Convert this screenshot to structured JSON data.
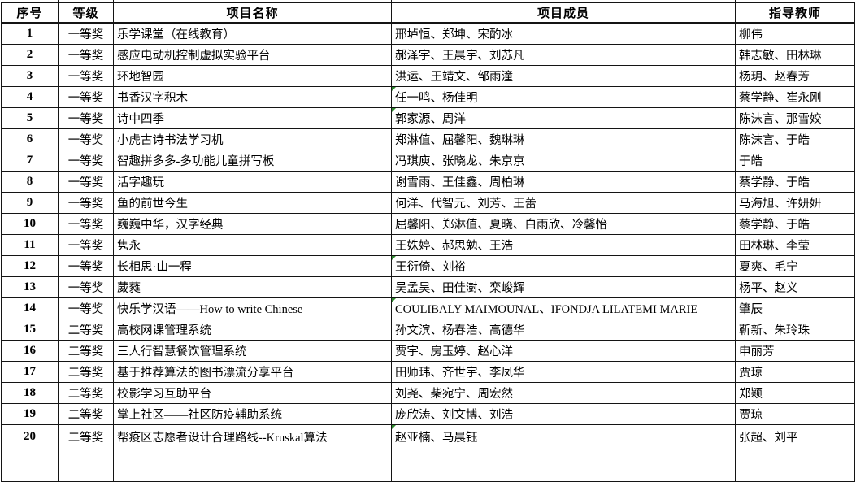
{
  "table": {
    "headers": [
      "序号",
      "等级",
      "项目名称",
      "项目成员",
      "指导教师"
    ],
    "rows": [
      {
        "no": "1",
        "grade": "一等奖",
        "project": "乐学课堂（在线教育）",
        "members": "邢垆恒、郑坤、宋酌冰",
        "teachers": "柳伟",
        "flag": false
      },
      {
        "no": "2",
        "grade": "一等奖",
        "project": "感应电动机控制虚拟实验平台",
        "members": "郝泽宇、王晨宇、刘苏凡",
        "teachers": "韩志敏、田林琳",
        "flag": false
      },
      {
        "no": "3",
        "grade": "一等奖",
        "project": "环地智园",
        "members": "洪运、王靖文、邹雨潼",
        "teachers": "杨玥、赵春芳",
        "flag": false
      },
      {
        "no": "4",
        "grade": "一等奖",
        "project": "书香汉字积木",
        "members": "任一鸣、杨佳明",
        "teachers": "蔡学静、崔永刚",
        "flag": true
      },
      {
        "no": "5",
        "grade": "一等奖",
        "project": "诗中四季",
        "members": "郭家源、周洋",
        "teachers": "陈沫言、那雪姣",
        "flag": true
      },
      {
        "no": "6",
        "grade": "一等奖",
        "project": "小虎古诗书法学习机",
        "members": "郑淋值、屈馨阳、魏琳琳",
        "teachers": "陈沫言、于皓",
        "flag": false
      },
      {
        "no": "7",
        "grade": "一等奖",
        "project": "智趣拼多多-多功能儿童拼写板",
        "members": "冯琪庾、张晓龙、朱京京",
        "teachers": "于皓",
        "flag": false
      },
      {
        "no": "8",
        "grade": "一等奖",
        "project": "活字趣玩",
        "members": "谢雪雨、王佳鑫、周柏琳",
        "teachers": "蔡学静、于皓",
        "flag": false
      },
      {
        "no": "9",
        "grade": "一等奖",
        "project": "鱼的前世今生",
        "members": "何洋、代智元、刘芳、王蕾",
        "teachers": "马海旭、许妍妍",
        "flag": false
      },
      {
        "no": "10",
        "grade": "一等奖",
        "project": "巍巍中华，汉字经典",
        "members": "屈馨阳、郑淋值、夏晓、白雨欣、冷馨怡",
        "teachers": "蔡学静、于皓",
        "flag": false
      },
      {
        "no": "11",
        "grade": "一等奖",
        "project": "隽永",
        "members": "王姝婷、郝思勉、王浩",
        "teachers": "田林琳、李莹",
        "flag": false
      },
      {
        "no": "12",
        "grade": "一等奖",
        "project": "长相思·山一程",
        "members": "王衍倚、刘裕",
        "teachers": "夏爽、毛宁",
        "flag": true
      },
      {
        "no": "13",
        "grade": "一等奖",
        "project": "葳蕤",
        "members": "吴孟昊、田佳澍、栾峻辉",
        "teachers": "杨平、赵义",
        "flag": false
      },
      {
        "no": "14",
        "grade": "一等奖",
        "project": "快乐学汉语——How to write Chinese",
        "members": "COULIBALY MAIMOUNAL、IFONDJA LILATEMI MARIE",
        "teachers": "肇辰",
        "flag": true
      },
      {
        "no": "15",
        "grade": "二等奖",
        "project": "高校网课管理系统",
        "members": "孙文滨、杨春浩、高德华",
        "teachers": "靳新、朱玲珠",
        "flag": false
      },
      {
        "no": "16",
        "grade": "二等奖",
        "project": "三人行智慧餐饮管理系统",
        "members": "贾宇、房玉婷、赵心洋",
        "teachers": "申丽芳",
        "flag": false
      },
      {
        "no": "17",
        "grade": "二等奖",
        "project": "基于推荐算法的图书漂流分享平台",
        "members": "田师玮、齐世宇、李凤华",
        "teachers": "贾琼",
        "flag": false
      },
      {
        "no": "18",
        "grade": "二等奖",
        "project": "校影学习互助平台",
        "members": "刘尧、柴宛宁、周宏然",
        "teachers": "郑颖",
        "flag": false
      },
      {
        "no": "19",
        "grade": "二等奖",
        "project": "掌上社区——社区防疫辅助系统",
        "members": "庞欣涛、刘文博、刘浩",
        "teachers": "贾琼",
        "flag": false
      },
      {
        "no": "20",
        "grade": "二等奖",
        "project": "帮疫区志愿者设计合理路线--Kruskal算法",
        "members": "赵亚楠、马晨钰",
        "teachers": "张超、刘平",
        "flag": true
      }
    ]
  },
  "colors": {
    "border": "#141414",
    "flag_marker": "#2e8b2e",
    "text": "#000000",
    "background": "#ffffff"
  }
}
